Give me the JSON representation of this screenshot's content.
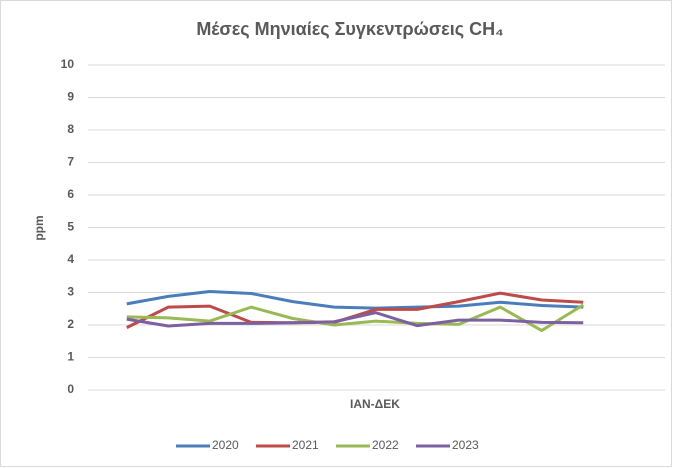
{
  "chart_data": {
    "type": "line",
    "title": "Μέσες Μηνιαίες Συγκεντρώσεις CH₄",
    "x_label": "ΙΑΝ-ΔΕΚ",
    "y_label": "ppm",
    "categories": [
      null,
      null,
      null,
      null,
      null,
      null,
      null,
      null,
      null,
      null,
      null,
      null
    ],
    "series": [
      {
        "name": "2020",
        "color": "#4a7ebb",
        "values": [
          2.65,
          2.88,
          3.03,
          2.97,
          2.72,
          2.55,
          2.52,
          2.55,
          2.58,
          2.7,
          2.6,
          2.55
        ]
      },
      {
        "name": "2021",
        "color": "#be4b48",
        "values": [
          1.92,
          2.55,
          2.58,
          2.08,
          2.07,
          2.08,
          2.48,
          2.48,
          2.72,
          2.98,
          2.77,
          2.7
        ]
      },
      {
        "name": "2022",
        "color": "#98b954",
        "values": [
          2.25,
          2.22,
          2.12,
          2.55,
          2.2,
          2.0,
          2.12,
          2.05,
          2.02,
          2.55,
          1.83,
          2.62
        ]
      },
      {
        "name": "2023",
        "color": "#7d60a0",
        "values": [
          2.18,
          1.97,
          2.05,
          2.05,
          2.07,
          2.1,
          2.38,
          1.98,
          2.15,
          2.15,
          2.08,
          2.07
        ]
      }
    ],
    "ylim": [
      0,
      10
    ],
    "yticks": [
      0,
      1,
      2,
      3,
      4,
      5,
      6,
      7,
      8,
      9,
      10
    ],
    "grid": true,
    "legend": "bottom"
  }
}
